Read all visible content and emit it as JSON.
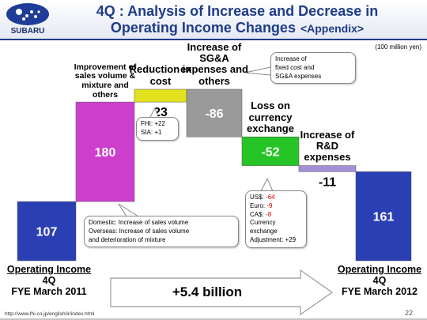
{
  "header": {
    "title_line1": "4Q : Analysis of Increase and Decrease in",
    "title_line2": "Operating Income Changes",
    "title_suffix": "<Appendix>",
    "logo": "SUBARU"
  },
  "footer": {
    "url": "http://www.fhi.co.jp/english/ir/index.html",
    "page": "22"
  },
  "chart_data": {
    "type": "waterfall",
    "unit": "(100 million yen)",
    "categories": [
      "Operating Income",
      "Improvement of sales volume & mixture and others",
      "Reduction in cost",
      "Increase of SG&A expenses and others",
      "Loss on currency exchange",
      "Increase of R&D expenses",
      "Operating Income"
    ],
    "period": [
      "4Q",
      null,
      null,
      null,
      null,
      null,
      "4Q"
    ],
    "fiscal_year": [
      "FYE March 2011",
      null,
      null,
      null,
      null,
      null,
      "FYE March 2012"
    ],
    "values": [
      107,
      180,
      23,
      -86,
      -52,
      -11,
      161
    ],
    "colors": [
      "#2b3fb5",
      "#cc3fcc",
      "#e2e21e",
      "#9a9a9a",
      "#26c426",
      "#a58fd8",
      "#2b3fb5"
    ],
    "label_colors": [
      "#ffffff",
      "#ffffff",
      "#000000",
      "#ffffff",
      "#ffffff",
      "#000000",
      "#ffffff"
    ],
    "change_label": "+5.4 billion",
    "callouts": {
      "cost": [
        "FHI: +22",
        "SIA: +1"
      ],
      "sga": [
        "Increase of",
        "fixed cost and",
        "SG&A expenses"
      ],
      "sales": [
        "Domestic: Increase of sales volume",
        "Overseas: Increase of sales volume",
        "and deterioration of mixture"
      ],
      "currency": {
        "items": [
          [
            "US$:",
            "-64"
          ],
          [
            "Euro:",
            "-9"
          ],
          [
            "CA$:",
            "-8"
          ]
        ],
        "adjustment": [
          "Currency",
          "exchange",
          "Adjustment: +29"
        ]
      }
    }
  }
}
